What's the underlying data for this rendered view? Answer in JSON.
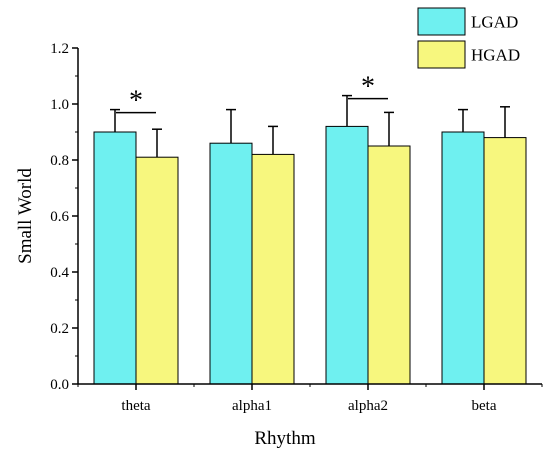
{
  "chart_data": {
    "type": "bar",
    "xlabel": "Rhythm",
    "ylabel": "Small World",
    "categories": [
      "theta",
      "alpha1",
      "alpha2",
      "beta"
    ],
    "ylim": [
      0.0,
      1.2
    ],
    "yticks": [
      0.0,
      0.2,
      0.4,
      0.6,
      0.8,
      1.0,
      1.2
    ],
    "ytick_labels": [
      "0.0",
      "0.2",
      "0.4",
      "0.6",
      "0.8",
      "1.0",
      "1.2"
    ],
    "grid": false,
    "legend_position": "top-right",
    "series": [
      {
        "name": "LGAD",
        "color": "#6ff0f0",
        "values": [
          0.9,
          0.86,
          0.92,
          0.9
        ],
        "errors": [
          0.08,
          0.12,
          0.11,
          0.08
        ]
      },
      {
        "name": "HGAD",
        "color": "#f7f77e",
        "values": [
          0.81,
          0.82,
          0.85,
          0.88
        ],
        "errors": [
          0.1,
          0.1,
          0.12,
          0.11
        ]
      }
    ],
    "significance": [
      {
        "category_index": 0,
        "label": "*"
      },
      {
        "category_index": 2,
        "label": "*"
      }
    ]
  }
}
